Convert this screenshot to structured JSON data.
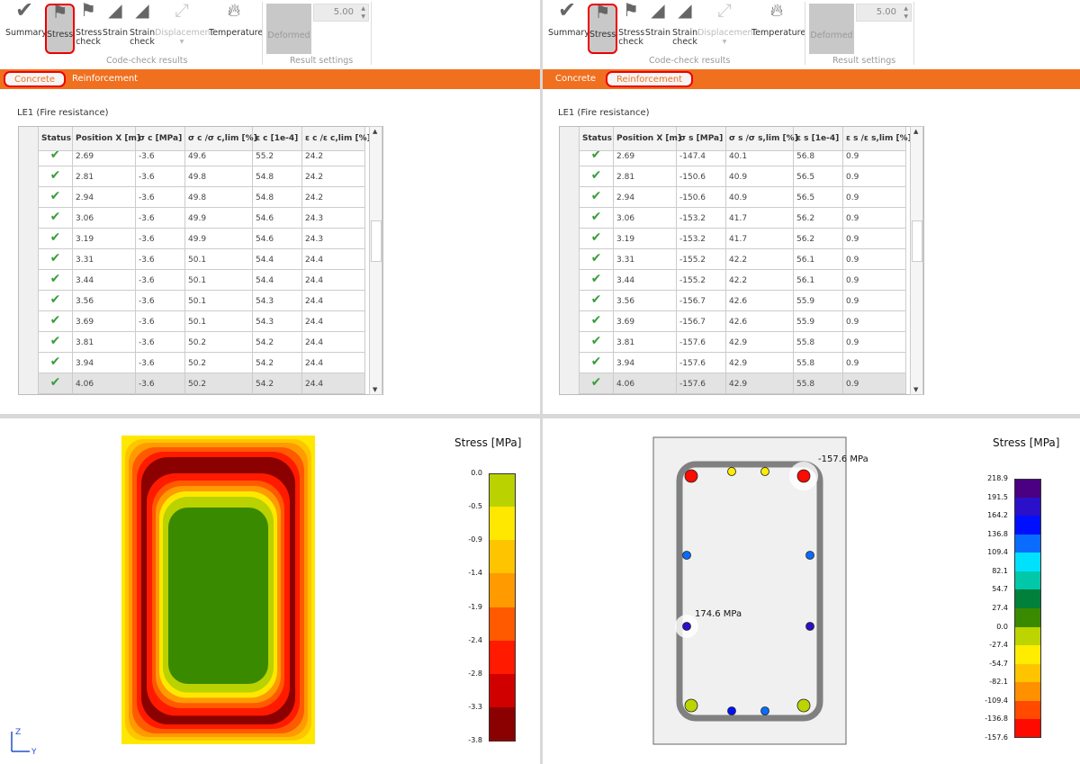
{
  "toolbar": {
    "summary": "Summary",
    "stress": "Stress",
    "stress_check": "Stress check",
    "strain": "Strain",
    "strain_check": "Strain check",
    "displacement": "Displacement",
    "temperature": "Temperature",
    "group_codecheck": "Code-check results",
    "deformed": "Deformed",
    "deform_value": "5.00",
    "group_settings": "Result settings",
    "selected": "Stress"
  },
  "left": {
    "tabs": [
      "Concrete",
      "Reinforcement"
    ],
    "active_tab": "Concrete",
    "load_case": "LE1 (Fire resistance)",
    "columns": [
      "Status",
      "Position X [m]",
      "σ c  [MPa]",
      "σ c /σ c,lim   [%]",
      "ε c  [1e-4]",
      "ε c /ε c,lim   [%]"
    ],
    "rows": [
      [
        "2.69",
        "-3.6",
        "49.6",
        "55.2",
        "24.2"
      ],
      [
        "2.81",
        "-3.6",
        "49.8",
        "54.8",
        "24.2"
      ],
      [
        "2.94",
        "-3.6",
        "49.8",
        "54.8",
        "24.2"
      ],
      [
        "3.06",
        "-3.6",
        "49.9",
        "54.6",
        "24.3"
      ],
      [
        "3.19",
        "-3.6",
        "49.9",
        "54.6",
        "24.3"
      ],
      [
        "3.31",
        "-3.6",
        "50.1",
        "54.4",
        "24.4"
      ],
      [
        "3.44",
        "-3.6",
        "50.1",
        "54.4",
        "24.4"
      ],
      [
        "3.56",
        "-3.6",
        "50.1",
        "54.3",
        "24.4"
      ],
      [
        "3.69",
        "-3.6",
        "50.1",
        "54.3",
        "24.4"
      ],
      [
        "3.81",
        "-3.6",
        "50.2",
        "54.2",
        "24.4"
      ],
      [
        "3.94",
        "-3.6",
        "50.2",
        "54.2",
        "24.4"
      ],
      [
        "4.06",
        "-3.6",
        "50.2",
        "54.2",
        "24.4"
      ]
    ],
    "legend": {
      "title": "Stress [MPa]",
      "labels": [
        "0.0",
        "-0.5",
        "-0.9",
        "-1.4",
        "-1.9",
        "-2.4",
        "-2.8",
        "-3.3",
        "-3.8"
      ],
      "colors": [
        "#b9d200",
        "#ffe800",
        "#ffc400",
        "#ff9a00",
        "#ff5a00",
        "#ff1a00",
        "#d00000",
        "#8b0000"
      ]
    },
    "axes": {
      "z": "Z",
      "y": "Y"
    }
  },
  "right": {
    "tabs": [
      "Concrete",
      "Reinforcement"
    ],
    "active_tab": "Reinforcement",
    "load_case": "LE1 (Fire resistance)",
    "columns": [
      "Status",
      "Position X [m]",
      "σ s  [MPa]",
      "σ s /σ s,lim   [%]",
      "ε s  [1e-4]",
      "ε s /ε s,lim   [%]"
    ],
    "rows": [
      [
        "2.69",
        "-147.4",
        "40.1",
        "56.8",
        "0.9"
      ],
      [
        "2.81",
        "-150.6",
        "40.9",
        "56.5",
        "0.9"
      ],
      [
        "2.94",
        "-150.6",
        "40.9",
        "56.5",
        "0.9"
      ],
      [
        "3.06",
        "-153.2",
        "41.7",
        "56.2",
        "0.9"
      ],
      [
        "3.19",
        "-153.2",
        "41.7",
        "56.2",
        "0.9"
      ],
      [
        "3.31",
        "-155.2",
        "42.2",
        "56.1",
        "0.9"
      ],
      [
        "3.44",
        "-155.2",
        "42.2",
        "56.1",
        "0.9"
      ],
      [
        "3.56",
        "-156.7",
        "42.6",
        "55.9",
        "0.9"
      ],
      [
        "3.69",
        "-156.7",
        "42.6",
        "55.9",
        "0.9"
      ],
      [
        "3.81",
        "-157.6",
        "42.9",
        "55.8",
        "0.9"
      ],
      [
        "3.94",
        "-157.6",
        "42.9",
        "55.8",
        "0.9"
      ],
      [
        "4.06",
        "-157.6",
        "42.9",
        "55.8",
        "0.9"
      ]
    ],
    "legend": {
      "title": "Stress [MPa]",
      "labels": [
        "218.9",
        "191.5",
        "164.2",
        "136.8",
        "109.4",
        "82.1",
        "54.7",
        "27.4",
        "0.0",
        "-27.4",
        "-54.7",
        "-82.1",
        "-109.4",
        "-136.8",
        "-157.6"
      ],
      "colors": [
        "#4b0082",
        "#2a10c8",
        "#0010ff",
        "#0a6cff",
        "#00e0ff",
        "#00c8a8",
        "#00803a",
        "#3a8a00",
        "#bcd400",
        "#ffec00",
        "#ffc400",
        "#ff9000",
        "#ff4a00",
        "#ff0a00"
      ]
    },
    "annotations": {
      "max": "-157.6 MPa",
      "min": "174.6 MPa"
    }
  }
}
